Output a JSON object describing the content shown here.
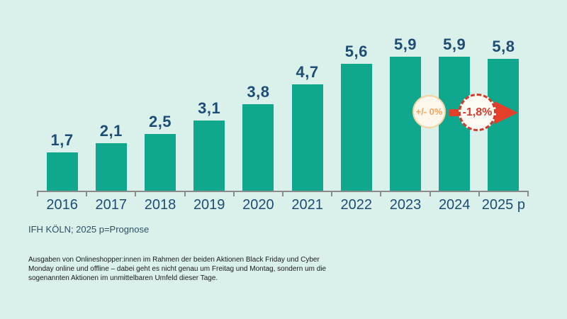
{
  "chart_data": {
    "type": "bar",
    "categories": [
      "2016",
      "2017",
      "2018",
      "2019",
      "2020",
      "2021",
      "2022",
      "2023",
      "2024",
      "2025 p"
    ],
    "values": [
      1.7,
      2.1,
      2.5,
      3.1,
      3.8,
      4.7,
      5.6,
      5.9,
      5.9,
      5.8
    ],
    "value_labels": [
      "1,7",
      "2,1",
      "2,5",
      "3,1",
      "3,8",
      "4,7",
      "5,6",
      "5,9",
      "5,9",
      "5,8"
    ],
    "title": "",
    "xlabel": "",
    "ylabel": "",
    "ylim": [
      0,
      6.2
    ],
    "grid": false,
    "legend_position": "none",
    "bar_color": "#0fa78e",
    "label_color": "#1d4d74",
    "axis_color": "#8a8a8a",
    "annotations": [
      {
        "label": "+/- 0%",
        "shape": "circle-solid",
        "text_color": "#f3a45f",
        "border_color": "#f5d2a0",
        "fill_color": "#fdf7ec",
        "between_categories": [
          "2023",
          "2024"
        ]
      },
      {
        "label": "-1,8%",
        "shape": "circle-dashed-with-right-arrow",
        "text_color": "#d4392a",
        "border_color": "#d4392a",
        "fill_color": "#fdfaf4",
        "arrow_color": "#e2402b",
        "between_categories": [
          "2024",
          "2025 p"
        ]
      }
    ]
  },
  "footer": {
    "source": "IFH KÖLN; 2025 p=Prognose",
    "description_lines": [
      "Ausgaben von Onlineshopper:innen im Rahmen der beiden Aktionen Black Friday und Cyber",
      "Monday online und offline – dabei geht es nicht genau um Freitag und Montag, sondern um die",
      "sogenannten Aktionen im unmittelbaren Umfeld dieser Tage."
    ]
  },
  "colors": {
    "background": "#daf0eb",
    "source_text": "#2f5060",
    "description_text": "#1a1a1a"
  }
}
